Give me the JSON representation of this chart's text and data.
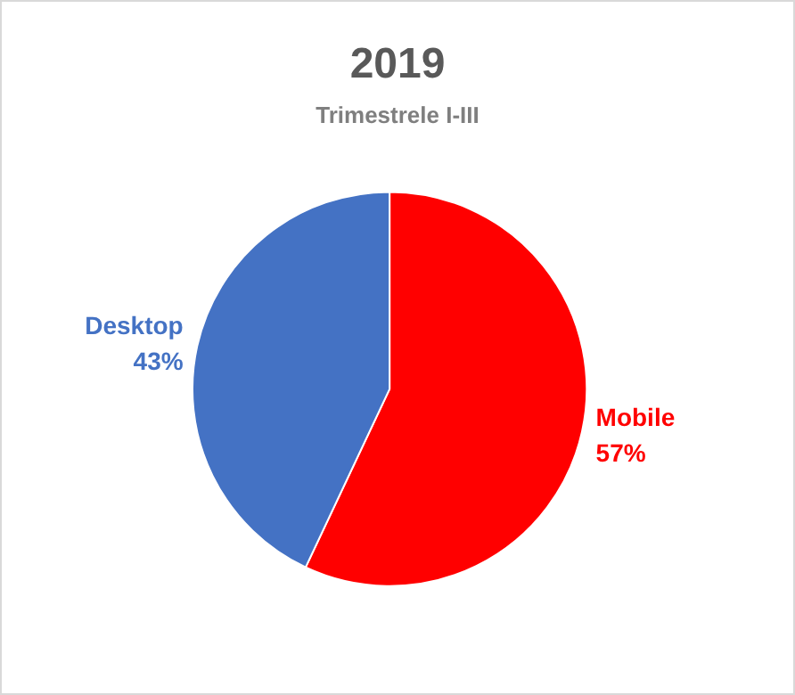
{
  "chart_data": {
    "type": "pie",
    "title": "2019",
    "subtitle": "Trimestrele I-III",
    "categories": [
      "Mobile",
      "Desktop"
    ],
    "values": [
      57,
      43
    ],
    "colors": [
      "#ff0000",
      "#4472c4"
    ],
    "value_labels": [
      "57%",
      "43%"
    ],
    "legend": false
  }
}
